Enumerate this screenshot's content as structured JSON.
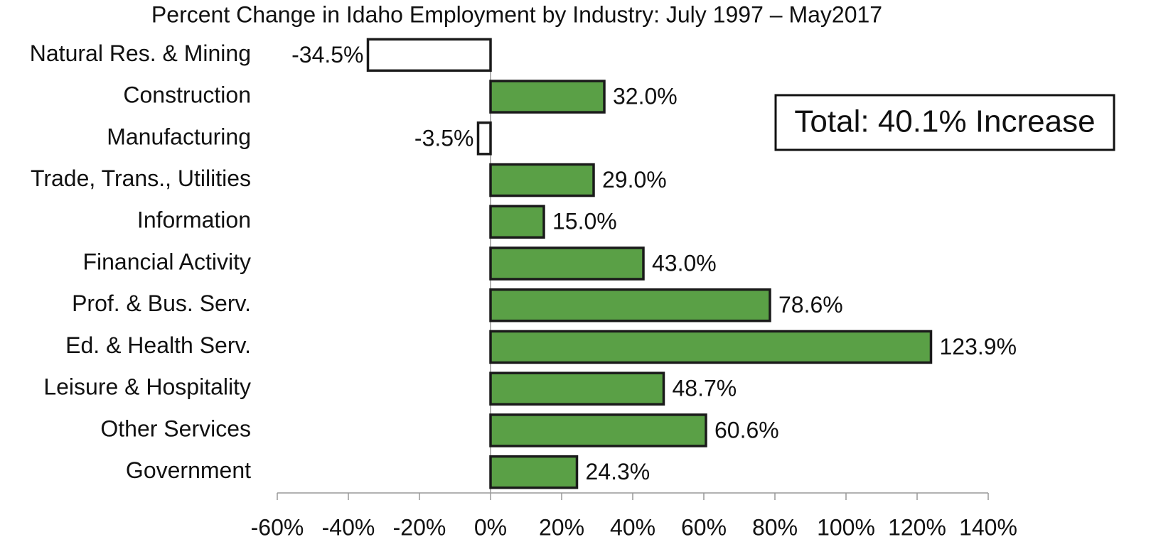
{
  "chart_data": {
    "type": "bar",
    "orientation": "horizontal",
    "title": "Percent Change in Idaho Employment by Industry: July 1997 – May2017",
    "categories": [
      "Natural Res. & Mining",
      "Construction",
      "Manufacturing",
      "Trade, Trans., Utilities",
      "Information",
      "Financial Activity",
      "Prof. & Bus. Serv.",
      "Ed. & Health Serv.",
      "Leisure & Hospitality",
      "Other Services",
      "Government"
    ],
    "values": [
      -34.5,
      32.0,
      -3.5,
      29.0,
      15.0,
      43.0,
      78.6,
      123.9,
      48.7,
      60.6,
      24.3
    ],
    "value_labels": [
      "-34.5%",
      "32.0%",
      "-3.5%",
      "29.0%",
      "15.0%",
      "43.0%",
      "78.6%",
      "123.9%",
      "48.7%",
      "60.6%",
      "24.3%"
    ],
    "colors": [
      "#ffffff",
      "#5aa046",
      "#ffffff",
      "#5aa046",
      "#5aa046",
      "#5aa046",
      "#5aa046",
      "#5aa046",
      "#5aa046",
      "#5aa046",
      "#5aa046"
    ],
    "xlim": [
      -60,
      140
    ],
    "xticks": [
      {
        "value": -60,
        "label": "-60%"
      },
      {
        "value": -40,
        "label": "-40%"
      },
      {
        "value": -20,
        "label": "-20%"
      },
      {
        "value": 0,
        "label": "0%"
      },
      {
        "value": 20,
        "label": "20%"
      },
      {
        "value": 40,
        "label": "40%"
      },
      {
        "value": 60,
        "label": "60%"
      },
      {
        "value": 80,
        "label": "80%"
      },
      {
        "value": 100,
        "label": "100%"
      },
      {
        "value": 120,
        "label": "120%"
      },
      {
        "value": 140,
        "label": "140%"
      }
    ],
    "annotation": "Total: 40.1% Increase"
  }
}
